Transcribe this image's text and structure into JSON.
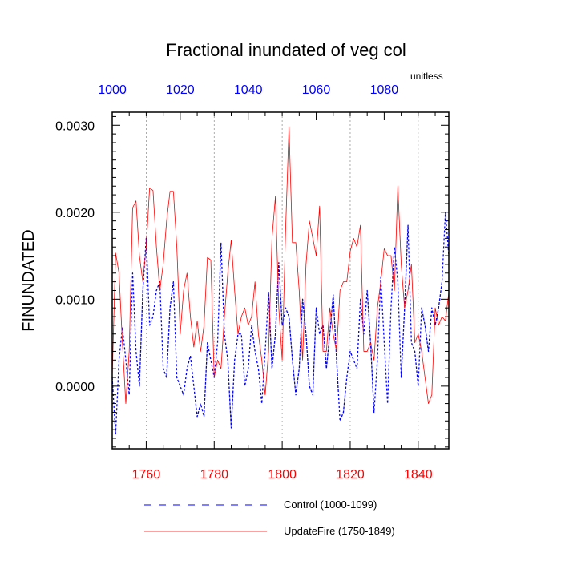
{
  "chart_data": {
    "type": "line",
    "title": "Fractional inundated of veg col",
    "units": "unitless",
    "ylabel": "FINUNDATED",
    "ylim": [
      -0.00072,
      0.00315
    ],
    "y_ticks": [
      "0.0000",
      "0.0010",
      "0.0020",
      "0.0030"
    ],
    "y_tick_values": [
      0,
      0.001,
      0.002,
      0.003
    ],
    "x_bottom": {
      "range": [
        1750,
        1849
      ],
      "ticks": [
        1760,
        1780,
        1800,
        1820,
        1840
      ],
      "color": "#ff0000"
    },
    "x_top": {
      "range": [
        1000,
        1099
      ],
      "ticks": [
        1000,
        1020,
        1040,
        1060,
        1080
      ],
      "color": "#0000ff"
    },
    "grid": "vertical dotted at bottom ticks",
    "legend": {
      "placement": "bottom"
    },
    "series": [
      {
        "name": "Control (1000-1099)",
        "color": "#0000ff",
        "style": "dashed",
        "axis": "top",
        "x_start": 1000,
        "values": [
          0.0001,
          -0.00055,
          0.0003,
          0.00068,
          0.0003,
          -0.0001,
          0.0013,
          0.0004,
          0.0,
          0.0011,
          0.0017,
          0.0007,
          0.0008,
          0.0011,
          0.0012,
          0.0002,
          0.0001,
          0.0009,
          0.0012,
          0.0001,
          0.0,
          -0.0001,
          0.0002,
          0.00035,
          0.0,
          -0.00035,
          -0.0002,
          -0.00035,
          0.0005,
          0.0003,
          0.0001,
          0.0005,
          0.00165,
          0.0006,
          0.0003,
          -0.00048,
          0.0003,
          0.0006,
          0.0006,
          0.0,
          0.0002,
          0.0007,
          0.0004,
          0.0002,
          -0.0002,
          0.0004,
          0.00108,
          0.0002,
          0.0006,
          0.00142,
          0.0007,
          0.0009,
          0.0008,
          0.0003,
          -0.0001,
          0.0002,
          0.001,
          0.0006,
          0.0,
          -0.0001,
          0.0009,
          0.0006,
          0.0007,
          0.0002,
          0.0006,
          0.00105,
          0.0003,
          -0.0004,
          -0.0003,
          0.0001,
          0.0004,
          0.0003,
          0.0002,
          0.001,
          0.0006,
          0.0011,
          0.0005,
          -0.0003,
          0.0003,
          0.00125,
          0.0005,
          -0.0002,
          0.0009,
          0.0016,
          0.0012,
          0.0001,
          0.0009,
          0.00185,
          0.0005,
          0.0004,
          0.0,
          0.0009,
          0.0007,
          0.0004,
          0.0009,
          0.0007,
          0.0009,
          0.0012,
          0.002,
          0.0015
        ]
      },
      {
        "name": "UpdateFire (1750-1849)",
        "color": "#ff0000",
        "style": "solid",
        "axis": "bottom",
        "x_start": 1750,
        "values": [
          0.0001,
          0.00153,
          0.0013,
          0.0005,
          -0.0002,
          0.0004,
          0.00205,
          0.00213,
          0.0015,
          0.0012,
          0.0016,
          0.00228,
          0.00225,
          0.0016,
          0.0011,
          0.0014,
          0.0019,
          0.00224,
          0.00224,
          0.0016,
          0.0006,
          0.0011,
          0.0013,
          0.0008,
          0.00045,
          0.00075,
          0.0004,
          0.0007,
          0.00148,
          0.00145,
          0.0001,
          0.0003,
          0.0002,
          0.0008,
          0.0013,
          0.00168,
          0.0011,
          0.0006,
          0.0008,
          0.0009,
          0.0007,
          0.0008,
          0.0012,
          0.0006,
          0.0003,
          -0.0001,
          0.0004,
          0.0017,
          0.00218,
          0.0009,
          0.0003,
          0.0018,
          0.00298,
          0.00165,
          0.00165,
          0.0011,
          0.0003,
          0.0014,
          0.0019,
          0.0017,
          0.0015,
          0.00207,
          0.0004,
          0.0004,
          0.0009,
          0.0006,
          0.0004,
          0.0011,
          0.0012,
          0.0012,
          0.00155,
          0.0017,
          0.0016,
          0.00185,
          0.0004,
          0.0004,
          0.0005,
          0.0003,
          0.0009,
          0.0012,
          0.00158,
          0.0015,
          0.0015,
          0.0011,
          0.0023,
          0.0014,
          0.0009,
          0.0011,
          0.0014,
          0.0005,
          0.0006,
          0.0004,
          0.0001,
          -0.0002,
          -0.0001,
          0.0009,
          0.0007,
          0.0008,
          0.00075,
          0.00108
        ]
      }
    ]
  }
}
